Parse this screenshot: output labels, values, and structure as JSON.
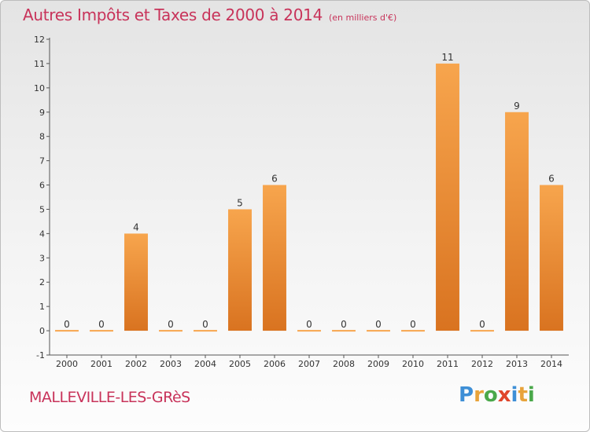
{
  "chart_data": {
    "type": "bar",
    "title": "Autres Impôts et Taxes de 2000 à 2014",
    "subtitle": "(en milliers d'€)",
    "xlabel": "",
    "ylabel": "",
    "categories": [
      "2000",
      "2001",
      "2002",
      "2003",
      "2004",
      "2005",
      "2006",
      "2007",
      "2008",
      "2009",
      "2010",
      "2011",
      "2012",
      "2013",
      "2014"
    ],
    "values": [
      0,
      0,
      4,
      0,
      0,
      5,
      6,
      0,
      0,
      0,
      0,
      11,
      0,
      9,
      6
    ],
    "data_labels": [
      "0",
      "0",
      "4",
      "0",
      "0",
      "5",
      "6",
      "0",
      "0",
      "0",
      "0",
      "11",
      "0",
      "9",
      "6"
    ],
    "ylim": [
      -1,
      12
    ],
    "yticks": [
      -1,
      0,
      1,
      2,
      3,
      4,
      5,
      6,
      7,
      8,
      9,
      10,
      11,
      12
    ],
    "grid": false,
    "legend": "none",
    "bar_color_top": "#f7a54d",
    "bar_color_bottom": "#d97320"
  },
  "footer": {
    "commune": "MALLEVILLE-LES-GRèS",
    "brand": "Proxiti"
  }
}
